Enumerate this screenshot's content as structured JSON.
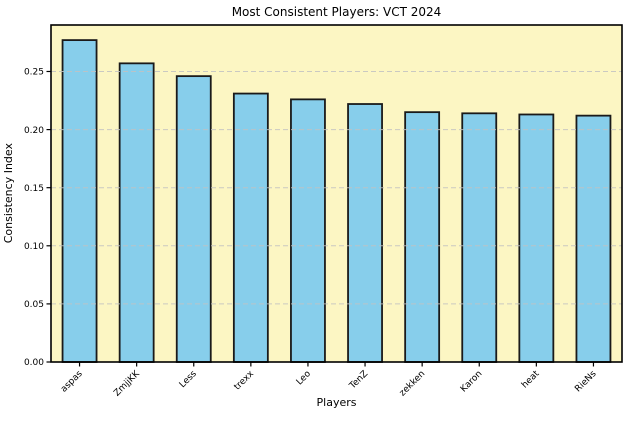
{
  "chart_data": {
    "type": "bar",
    "title": "Most Consistent Players: VCT 2024",
    "xlabel": "Players",
    "ylabel": "Consistency Index",
    "categories": [
      "aspas",
      "ZmjjKK",
      "Less",
      "trexx",
      "Leo",
      "TenZ",
      "zekken",
      "Karon",
      "heat",
      "RieNs"
    ],
    "values": [
      0.277,
      0.257,
      0.246,
      0.231,
      0.226,
      0.222,
      0.215,
      0.214,
      0.213,
      0.212
    ],
    "ylim": [
      0,
      0.29
    ],
    "yticks": [
      0,
      0.05,
      0.1,
      0.15,
      0.2,
      0.25
    ],
    "ytick_labels": [
      "0.00",
      "0.05",
      "0.10",
      "0.15",
      "0.20",
      "0.25"
    ],
    "grid": "horizontal-dashed",
    "legend": "none",
    "xtick_rotation_deg": 45,
    "colors": {
      "bar_fill": "#87CEEB",
      "bar_edge": "#1a1a1a",
      "plot_bg": "#FCF6C3",
      "figure_bg": "#ffffff",
      "grid_color": "#c2c2c2",
      "frame": "#000000",
      "text": "#000000"
    }
  }
}
